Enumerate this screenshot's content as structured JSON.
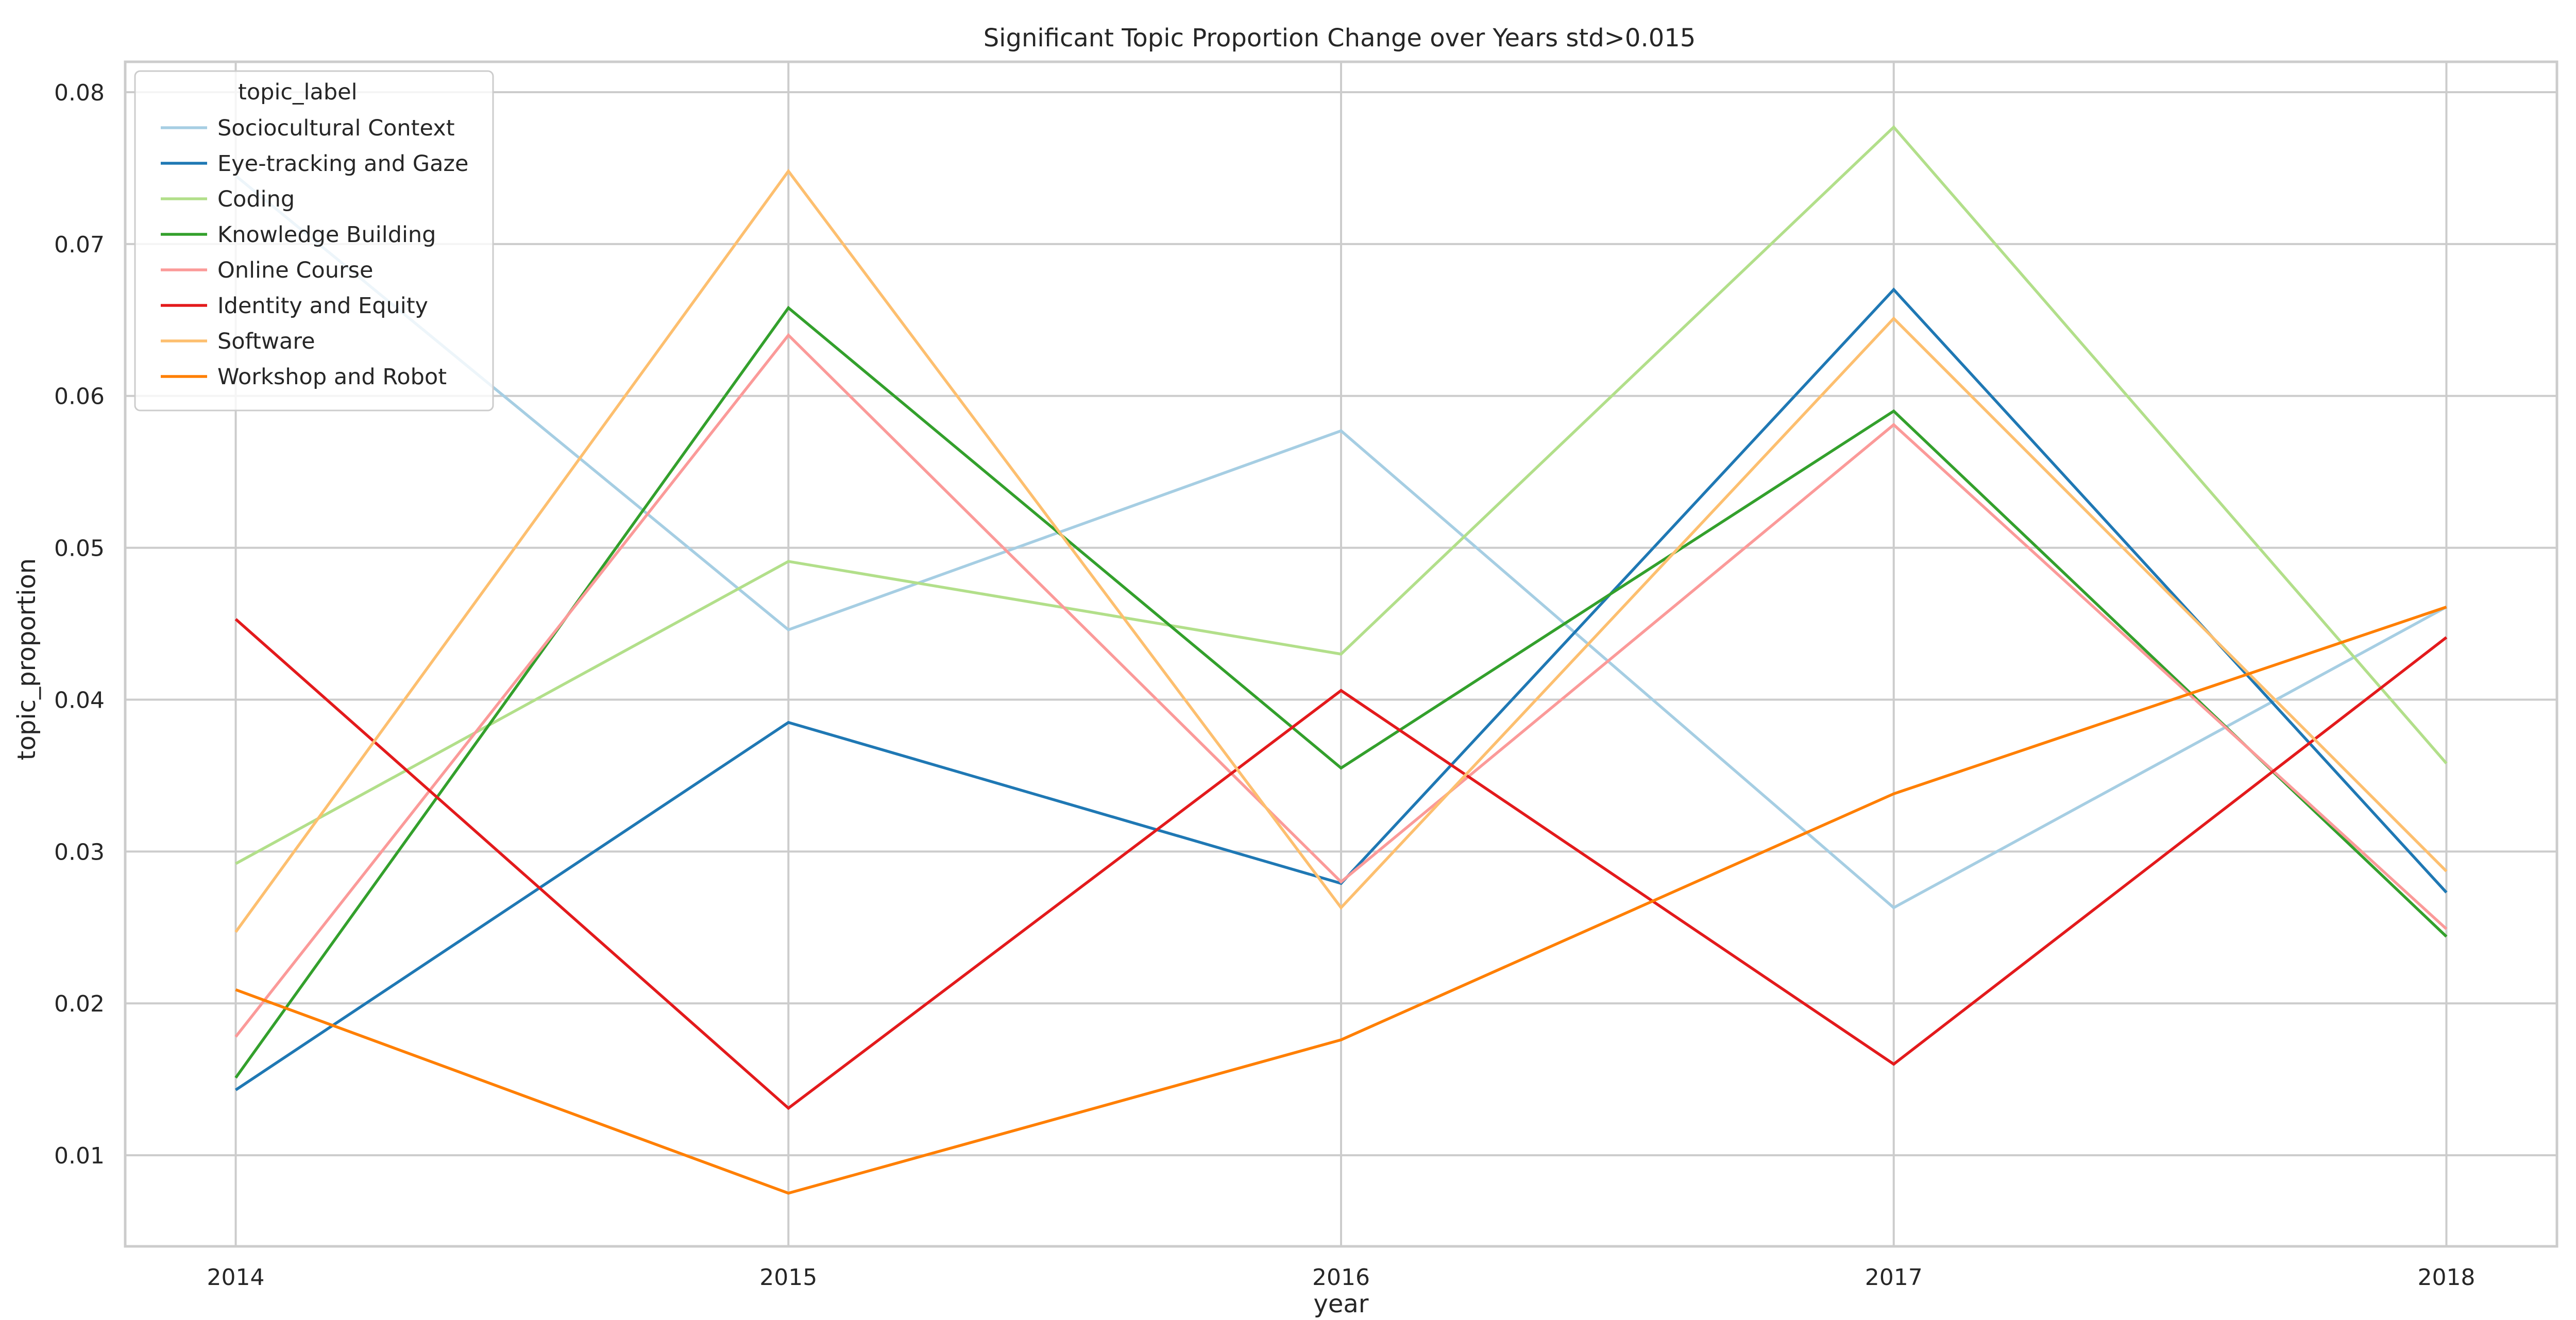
{
  "chart_data": {
    "type": "line",
    "title": "Significant Topic Proportion Change over Years  std>0.015",
    "xlabel": "year",
    "ylabel": "topic_proportion",
    "x": [
      "2014",
      "2015",
      "2016",
      "2017",
      "2018"
    ],
    "xlim": [
      2013.8,
      2018.2
    ],
    "ylim": [
      0.004,
      0.082
    ],
    "yticks": [
      "0.01",
      "0.02",
      "0.03",
      "0.04",
      "0.05",
      "0.06",
      "0.07",
      "0.08"
    ],
    "grid": true,
    "legend": {
      "title": "topic_label",
      "placement": "top-left"
    },
    "series": [
      {
        "name": "Sociocultural Context",
        "color": "#a6cee3",
        "values": [
          0.0745,
          0.0446,
          0.0577,
          0.0263,
          0.0461
        ]
      },
      {
        "name": "Eye-tracking and Gaze",
        "color": "#1f78b4",
        "values": [
          0.0143,
          0.0385,
          0.0279,
          0.067,
          0.0273
        ]
      },
      {
        "name": "Coding",
        "color": "#b2df8a",
        "values": [
          0.0292,
          0.0491,
          0.043,
          0.0777,
          0.0358
        ]
      },
      {
        "name": "Knowledge Building",
        "color": "#33a02c",
        "values": [
          0.0151,
          0.0658,
          0.0355,
          0.059,
          0.0244
        ]
      },
      {
        "name": "Online Course",
        "color": "#fb9a99",
        "values": [
          0.0178,
          0.064,
          0.028,
          0.0581,
          0.0249
        ]
      },
      {
        "name": "Identity and Equity",
        "color": "#e31a1c",
        "values": [
          0.0453,
          0.0131,
          0.0406,
          0.016,
          0.0441
        ]
      },
      {
        "name": "Software",
        "color": "#fdbf6f",
        "values": [
          0.0247,
          0.0748,
          0.0263,
          0.0651,
          0.0287
        ]
      },
      {
        "name": "Workshop and Robot",
        "color": "#ff7f00",
        "values": [
          0.0209,
          0.0075,
          0.0176,
          0.0338,
          0.0461
        ]
      }
    ]
  }
}
